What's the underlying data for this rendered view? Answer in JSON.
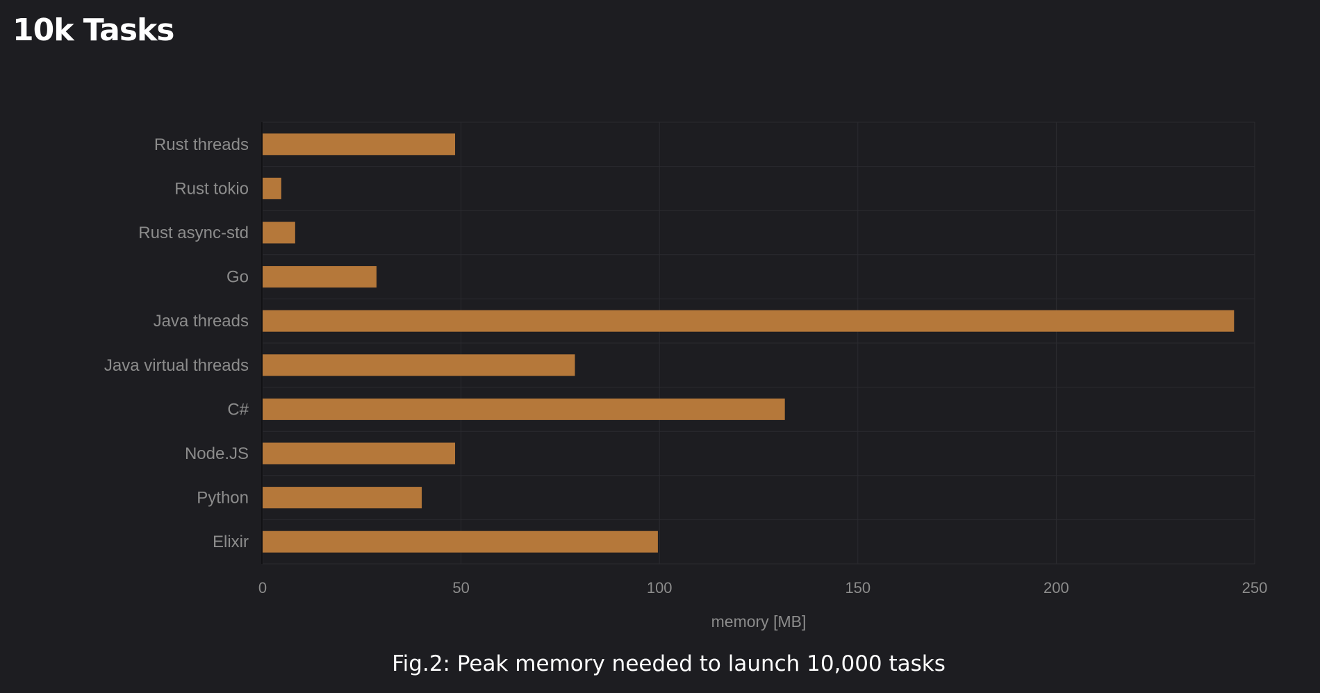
{
  "page": {
    "title": "10k Tasks",
    "caption": "Fig.2: Peak memory needed to launch 10,000 tasks"
  },
  "colors": {
    "background": "#1d1d21",
    "bar": "#b5783a",
    "grid": "#2b2b30",
    "label": "#8c8c8c"
  },
  "chart_data": {
    "type": "bar",
    "orientation": "horizontal",
    "categories": [
      "Rust threads",
      "Rust tokio",
      "Rust async-std",
      "Go",
      "Java threads",
      "Java virtual threads",
      "C#",
      "Node.JS",
      "Python",
      "Elixir"
    ],
    "values": [
      48.5,
      4.7,
      8.2,
      28.7,
      244.8,
      78.7,
      131.6,
      48.5,
      40.1,
      99.6
    ],
    "xlabel": "memory [MB]",
    "ylabel": "",
    "xlim": [
      0,
      250
    ],
    "xticks": [
      "0",
      "50",
      "100",
      "150",
      "200",
      "250"
    ],
    "grid": true,
    "legend": "none"
  }
}
